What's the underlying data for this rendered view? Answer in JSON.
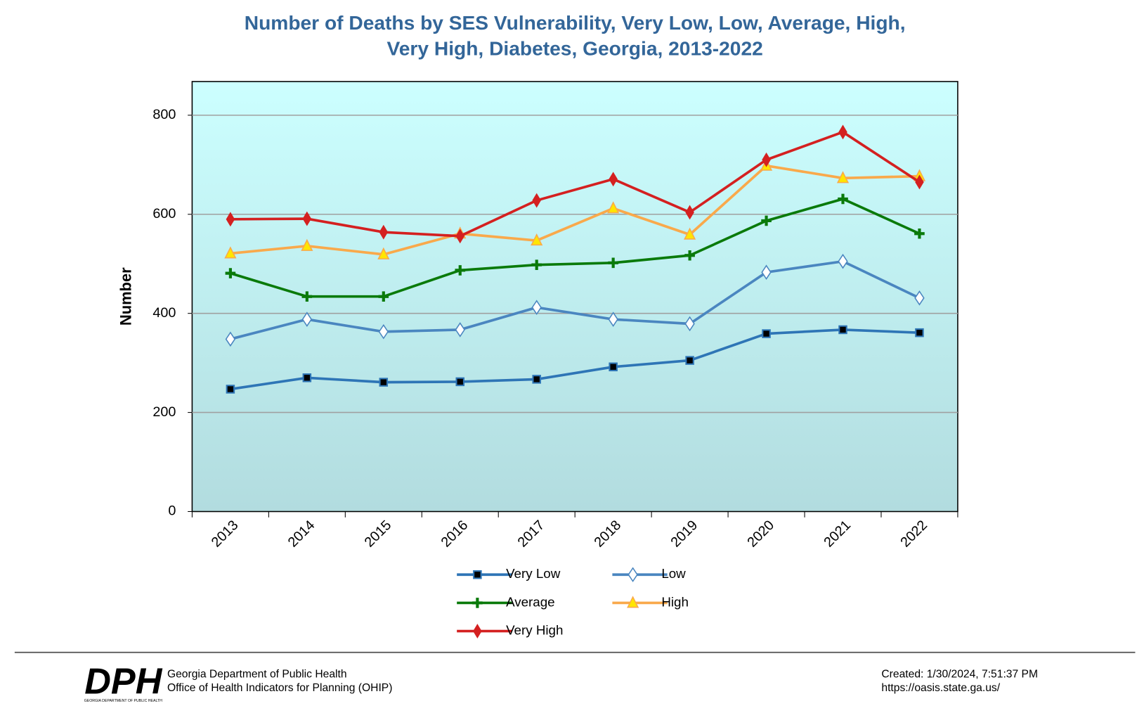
{
  "chart_data": {
    "type": "line",
    "title_lines": [
      "Number of Deaths by SES Vulnerability, Very Low, Low, Average, High,",
      "Very High, Diabetes, Georgia, 2013-2022"
    ],
    "y_label": "Number",
    "categories": [
      "2013",
      "2014",
      "2015",
      "2016",
      "2017",
      "2018",
      "2019",
      "2020",
      "2021",
      "2022"
    ],
    "series": [
      {
        "name": "Very Low",
        "color": "#2e75b6",
        "marker": "square",
        "values": [
          247,
          270,
          261,
          262,
          267,
          292,
          305,
          359,
          367,
          361
        ]
      },
      {
        "name": "Low",
        "color": "#4a86c0",
        "marker": "open-diamond",
        "values": [
          348,
          388,
          363,
          367,
          412,
          388,
          379,
          483,
          505,
          431
        ]
      },
      {
        "name": "Average",
        "color": "#0a7a0a",
        "marker": "plus",
        "values": [
          481,
          434,
          434,
          487,
          498,
          502,
          517,
          587,
          631,
          561
        ]
      },
      {
        "name": "High",
        "color": "#f9a94b",
        "marker": "triangle",
        "values": [
          521,
          536,
          519,
          561,
          547,
          612,
          559,
          698,
          673,
          677
        ]
      },
      {
        "name": "Very High",
        "color": "#d42020",
        "marker": "diamond",
        "values": [
          590,
          591,
          564,
          556,
          628,
          671,
          604,
          710,
          766,
          665
        ]
      }
    ],
    "ylim": [
      0,
      868
    ],
    "yticks": [
      0,
      200,
      400,
      600,
      800
    ],
    "grid": true,
    "legend": "bottom"
  },
  "footer": {
    "logo": "DPH",
    "logo_caption": "GEORGIA DEPARTMENT OF PUBLIC HEALTH",
    "org_lines": [
      "Georgia Department of Public Health",
      "Office of Health Indicators for Planning (OHIP)"
    ],
    "info_lines": [
      "Created: 1/30/2024, 7:51:37 PM",
      "https://oasis.state.ga.us/"
    ]
  }
}
